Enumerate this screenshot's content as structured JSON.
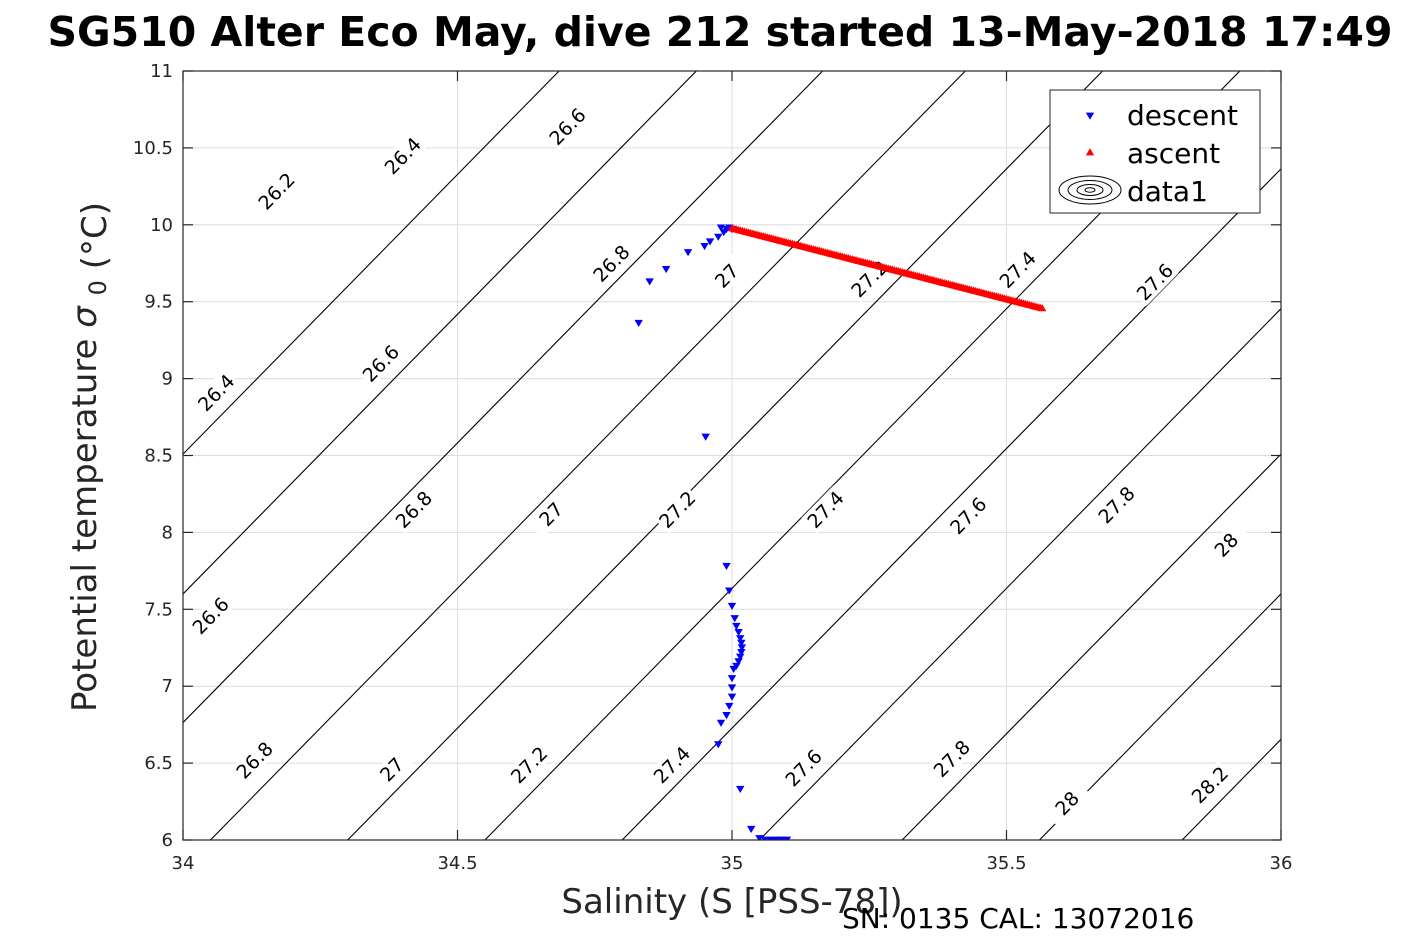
{
  "chart_data": {
    "type": "scatter",
    "title": "SG510 Alter Eco May, dive 212 started 13-May-2018 17:49",
    "xlabel": "Salinity (S [PSS-78])",
    "ylabel_main": "Potential temperature",
    "ylabel_sym": "σ",
    "ylabel_sub": "0",
    "ylabel_unit": "(°C)",
    "xlim": [
      34,
      36
    ],
    "ylim": [
      6,
      11
    ],
    "x_ticks": [
      34,
      34.5,
      35,
      35.5,
      36
    ],
    "x_tick_labels": [
      "34",
      "34.5",
      "35",
      "35.5",
      "36"
    ],
    "y_ticks": [
      6,
      6.5,
      7,
      7.5,
      8,
      8.5,
      9,
      9.5,
      10,
      10.5,
      11
    ],
    "y_tick_labels": [
      "6",
      "6.5",
      "7",
      "7.5",
      "8",
      "8.5",
      "9",
      "9.5",
      "10",
      "10.5",
      "11"
    ],
    "grid": true,
    "legend_position": "top-right",
    "footer": "SN: 0135  CAL: 13072016",
    "series": [
      {
        "name": "descent",
        "marker": "triangle-down",
        "color": "#0000ff",
        "points": [
          [
            34.83,
            9.36
          ],
          [
            34.85,
            9.63
          ],
          [
            34.88,
            9.71
          ],
          [
            34.92,
            9.82
          ],
          [
            34.95,
            9.86
          ],
          [
            34.96,
            9.89
          ],
          [
            34.975,
            9.92
          ],
          [
            34.985,
            9.95
          ],
          [
            34.99,
            9.97
          ],
          [
            34.995,
            9.98
          ],
          [
            35.0,
            9.97
          ],
          [
            34.98,
            9.98
          ],
          [
            34.952,
            8.62
          ],
          [
            34.99,
            7.78
          ],
          [
            34.995,
            7.62
          ],
          [
            35.0,
            7.52
          ],
          [
            35.005,
            7.44
          ],
          [
            35.008,
            7.39
          ],
          [
            35.012,
            7.35
          ],
          [
            35.015,
            7.31
          ],
          [
            35.017,
            7.28
          ],
          [
            35.018,
            7.25
          ],
          [
            35.017,
            7.22
          ],
          [
            35.015,
            7.19
          ],
          [
            35.012,
            7.16
          ],
          [
            35.008,
            7.13
          ],
          [
            35.003,
            7.11
          ],
          [
            35.0,
            7.05
          ],
          [
            35.0,
            6.99
          ],
          [
            35.0,
            6.93
          ],
          [
            34.995,
            6.87
          ],
          [
            34.99,
            6.81
          ],
          [
            34.98,
            6.76
          ],
          [
            34.975,
            6.62
          ],
          [
            35.015,
            6.33
          ],
          [
            35.035,
            6.07
          ],
          [
            35.05,
            6.01
          ],
          [
            35.06,
            6.0
          ],
          [
            35.07,
            6.0
          ],
          [
            35.08,
            6.0
          ],
          [
            35.09,
            6.0
          ],
          [
            35.1,
            6.0
          ]
        ]
      },
      {
        "name": "ascent",
        "marker": "triangle-up",
        "color": "#ff0000",
        "from": [
          35.0,
          9.98
        ],
        "to": [
          35.565,
          9.46
        ],
        "count": 150
      },
      {
        "name": "data1",
        "marker": "contour-legend",
        "color": "#000000"
      }
    ],
    "contours": {
      "color": "#000000",
      "lines": [
        {
          "sigma": "26.2",
          "lines_at_y6": 33.31
        },
        {
          "sigma": "26.4",
          "lines_at_y6": 33.56
        },
        {
          "sigma": "26.6",
          "lines_at_y6": 33.79
        },
        {
          "sigma": "26.8",
          "lines_at_y6": 34.05
        },
        {
          "sigma": "27",
          "lines_at_y6": 34.3
        },
        {
          "sigma": "27.2",
          "lines_at_y6": 34.55
        },
        {
          "sigma": "27.4",
          "lines_at_y6": 34.8
        },
        {
          "sigma": "27.6",
          "lines_at_y6": 35.05
        },
        {
          "sigma": "27.8",
          "lines_at_y6": 35.31
        },
        {
          "sigma": "28",
          "lines_at_y6": 35.56
        },
        {
          "sigma": "28.2",
          "lines_at_y6": 35.82
        }
      ],
      "labels": [
        {
          "text": "26.2",
          "x": 34.17,
          "y": 10.22
        },
        {
          "text": "26.4",
          "x": 34.4,
          "y": 10.45
        },
        {
          "text": "26.6",
          "x": 34.7,
          "y": 10.64
        },
        {
          "text": "26.8",
          "x": 34.78,
          "y": 9.75
        },
        {
          "text": "27",
          "x": 34.99,
          "y": 9.67
        },
        {
          "text": "27.2",
          "x": 35.25,
          "y": 9.65
        },
        {
          "text": "27.4",
          "x": 35.52,
          "y": 9.71
        },
        {
          "text": "27.6",
          "x": 35.77,
          "y": 9.63
        },
        {
          "text": "26.4",
          "x": 34.06,
          "y": 8.91
        },
        {
          "text": "26.6",
          "x": 34.36,
          "y": 9.1
        },
        {
          "text": "26.6",
          "x": 34.05,
          "y": 7.46
        },
        {
          "text": "26.8",
          "x": 34.42,
          "y": 8.15
        },
        {
          "text": "27",
          "x": 34.67,
          "y": 8.12
        },
        {
          "text": "27.2",
          "x": 34.9,
          "y": 8.15
        },
        {
          "text": "27.4",
          "x": 35.17,
          "y": 8.15
        },
        {
          "text": "27.6",
          "x": 35.43,
          "y": 8.11
        },
        {
          "text": "27.8",
          "x": 35.7,
          "y": 8.18
        },
        {
          "text": "28",
          "x": 35.9,
          "y": 7.92
        },
        {
          "text": "26.8",
          "x": 34.13,
          "y": 6.52
        },
        {
          "text": "27",
          "x": 34.38,
          "y": 6.46
        },
        {
          "text": "27.2",
          "x": 34.63,
          "y": 6.49
        },
        {
          "text": "27.4",
          "x": 34.89,
          "y": 6.49
        },
        {
          "text": "27.6",
          "x": 35.13,
          "y": 6.47
        },
        {
          "text": "27.8",
          "x": 35.4,
          "y": 6.53
        },
        {
          "text": "28",
          "x": 35.61,
          "y": 6.24
        },
        {
          "text": "28.2",
          "x": 35.87,
          "y": 6.36
        }
      ]
    }
  }
}
